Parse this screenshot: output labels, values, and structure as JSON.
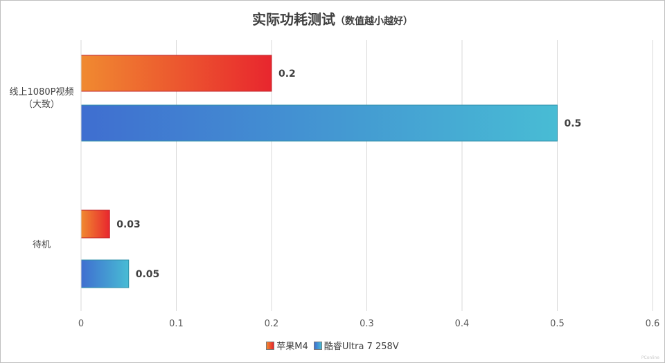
{
  "chart_data": {
    "type": "bar",
    "orientation": "horizontal",
    "title": "实际功耗测试",
    "subtitle": "（数值越小越好）",
    "categories": [
      [
        "线上1080P视频",
        "（大致）"
      ],
      [
        "待机"
      ]
    ],
    "series": [
      {
        "name": "苹果M4",
        "values": [
          0.2,
          0.03
        ],
        "labels": [
          "0.2",
          "0.03"
        ],
        "gradient": [
          "#f08a30",
          "#e8262e"
        ],
        "stroke": "#c2262c"
      },
      {
        "name": "酷睿Ultra 7 258V",
        "values": [
          0.5,
          0.05
        ],
        "labels": [
          "0.5",
          "0.05"
        ],
        "gradient": [
          "#3f6ed0",
          "#48bcd4"
        ],
        "stroke": "#2e8fa8"
      }
    ],
    "xlim": [
      0,
      0.6
    ],
    "xticks": [
      "0",
      "0.1",
      "0.2",
      "0.3",
      "0.4",
      "0.5",
      "0.6"
    ],
    "grid": true,
    "legend_position": "bottom"
  },
  "watermark": "PConline"
}
